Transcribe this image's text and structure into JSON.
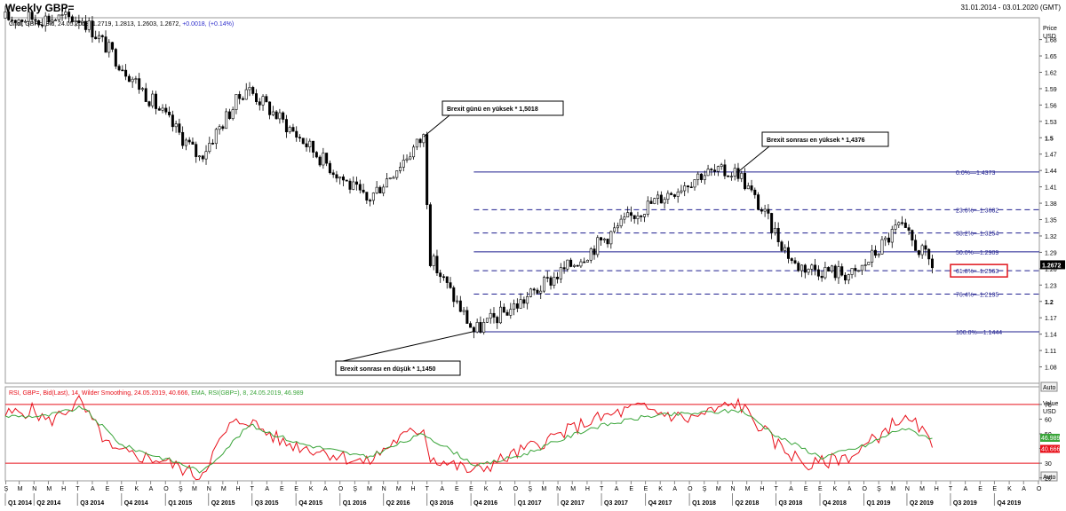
{
  "window": {
    "title": "Weekly GBP=",
    "date_range": "31.01.2014 - 03.01.2020 (GMT)"
  },
  "price_panel": {
    "header_prefix": "Cndl, GBP=, Bid, 24.05.2019, 1.2719, 1.2813, 1.2603, 1.2672, ",
    "header_change": "+0.0018, (+0.14%)",
    "axis_title": "Price",
    "axis_unit": "USD",
    "last_price": "1.2672",
    "auto_label": "Auto"
  },
  "rsi_panel": {
    "header_rsi": "RSI, GBP=, Bid(Last), 14, Wilder Smoothing, 24.05.2019, 40.666, ",
    "header_ema": "EMA, RSI(GBP=), 8, 24.05.2019, 46.989",
    "axis_title": "Value",
    "axis_unit": "USD",
    "ema_last": "46.989",
    "rsi_last": "40.666",
    "auto_label": "Auto"
  },
  "annotations": {
    "brexit_day_high": "Brexit günü en yüksek * 1,5018",
    "post_brexit_high": "Brexit sonrası en yüksek * 1,4376",
    "post_brexit_low": "Brexit sonrası en düşük * 1,1450"
  },
  "colors": {
    "bull_candle": "#ffffff",
    "bear_candle": "#000000",
    "fib_line": "#1f1f8f",
    "rsi_line": "#e8101a",
    "ema_line": "#3aa53a",
    "rsi_band": "#e8101a",
    "highlight_box": "#e0141c"
  },
  "chart_data": [
    {
      "type": "candlestick",
      "title": "Weekly GBP=",
      "ylabel": "Price USD",
      "ylim": [
        1.05,
        1.72
      ],
      "yticks": [
        {
          "v": 1.68,
          "label": "1.68"
        },
        {
          "v": 1.65,
          "label": "1.65"
        },
        {
          "v": 1.62,
          "label": "1.62"
        },
        {
          "v": 1.59,
          "label": "1.59"
        },
        {
          "v": 1.56,
          "label": "1.56"
        },
        {
          "v": 1.53,
          "label": "1.53"
        },
        {
          "v": 1.5,
          "label": "1.5",
          "bold": true
        },
        {
          "v": 1.47,
          "label": "1.47"
        },
        {
          "v": 1.44,
          "label": "1.44"
        },
        {
          "v": 1.41,
          "label": "1.41"
        },
        {
          "v": 1.38,
          "label": "1.38"
        },
        {
          "v": 1.35,
          "label": "1.35"
        },
        {
          "v": 1.32,
          "label": "1.32"
        },
        {
          "v": 1.29,
          "label": "1.29"
        },
        {
          "v": 1.26,
          "label": "1.26"
        },
        {
          "v": 1.23,
          "label": "1.23"
        },
        {
          "v": 1.2,
          "label": "1.2",
          "bold": true
        },
        {
          "v": 1.17,
          "label": "1.17"
        },
        {
          "v": 1.14,
          "label": "1.14"
        },
        {
          "v": 1.11,
          "label": "1.11"
        },
        {
          "v": 1.08,
          "label": "1.08"
        }
      ],
      "x_period": [
        "2014-01-31",
        "2020-01-03"
      ],
      "last_candle": {
        "date": "24.05.2019",
        "open": 1.2719,
        "high": 1.2813,
        "low": 1.2603,
        "close": 1.2672
      },
      "fibonacci": {
        "x_from": "2016-10-07",
        "x_to": "2020-01-03",
        "levels": [
          {
            "pct": "0.0%",
            "value": 1.4373,
            "solid": true
          },
          {
            "pct": "23.6%",
            "value": 1.3682,
            "solid": false
          },
          {
            "pct": "38.2%",
            "value": 1.3254,
            "solid": false
          },
          {
            "pct": "50.0%",
            "value": 1.2909,
            "solid": true
          },
          {
            "pct": "61.8%",
            "value": 1.2563,
            "solid": false,
            "highlight": true
          },
          {
            "pct": "76.4%",
            "value": 1.2135,
            "solid": false
          },
          {
            "pct": "100.0%",
            "value": 1.1444,
            "solid": true
          }
        ]
      },
      "anchor_points": [
        {
          "date": "2014-07-11",
          "price": 1.7192
        },
        {
          "date": "2015-03-13",
          "price": 1.4634
        },
        {
          "date": "2015-06-19",
          "price": 1.593
        },
        {
          "date": "2016-02-26",
          "price": 1.3836
        },
        {
          "date": "2016-06-24",
          "price": 1.5018
        },
        {
          "date": "2016-07-08",
          "price": 1.2798
        },
        {
          "date": "2016-10-07",
          "price": 1.145
        },
        {
          "date": "2017-01-13",
          "price": 1.1987
        },
        {
          "date": "2017-06-02",
          "price": 1.29
        },
        {
          "date": "2017-09-15",
          "price": 1.365
        },
        {
          "date": "2018-01-26",
          "price": 1.4345
        },
        {
          "date": "2018-04-13",
          "price": 1.4376
        },
        {
          "date": "2018-08-10",
          "price": 1.2665
        },
        {
          "date": "2018-12-14",
          "price": 1.248
        },
        {
          "date": "2019-03-15",
          "price": 1.338
        },
        {
          "date": "2019-05-24",
          "price": 1.2672
        }
      ]
    },
    {
      "type": "line",
      "title": "RSI, GBP=, Bid(Last), 14, Wilder Smoothing",
      "ylabel": "Value USD",
      "ylim": [
        18,
        82
      ],
      "bands": [
        30,
        70
      ],
      "yticks": [
        {
          "v": 70,
          "label": "70"
        },
        {
          "v": 60,
          "label": "60"
        },
        {
          "v": 50,
          "label": "50"
        },
        {
          "v": 40,
          "label": "40"
        },
        {
          "v": 30,
          "label": "30"
        },
        {
          "v": 20,
          "label": "20"
        }
      ],
      "series": [
        {
          "name": "RSI",
          "last": 40.666,
          "points": [
            {
              "date": "2014-01-31",
              "v": 63
            },
            {
              "date": "2014-03-28",
              "v": 66
            },
            {
              "date": "2014-05-02",
              "v": 58
            },
            {
              "date": "2014-07-04",
              "v": 72
            },
            {
              "date": "2014-09-12",
              "v": 38
            },
            {
              "date": "2014-12-26",
              "v": 32
            },
            {
              "date": "2015-03-13",
              "v": 21
            },
            {
              "date": "2015-05-15",
              "v": 55
            },
            {
              "date": "2015-06-19",
              "v": 60
            },
            {
              "date": "2015-09-04",
              "v": 44
            },
            {
              "date": "2015-11-27",
              "v": 38
            },
            {
              "date": "2016-02-26",
              "v": 30
            },
            {
              "date": "2016-04-29",
              "v": 46
            },
            {
              "date": "2016-06-24",
              "v": 54
            },
            {
              "date": "2016-07-08",
              "v": 34
            },
            {
              "date": "2016-10-07",
              "v": 24
            },
            {
              "date": "2017-01-13",
              "v": 38
            },
            {
              "date": "2017-06-02",
              "v": 58
            },
            {
              "date": "2017-09-15",
              "v": 68
            },
            {
              "date": "2017-12-29",
              "v": 60
            },
            {
              "date": "2018-04-13",
              "v": 71
            },
            {
              "date": "2018-06-29",
              "v": 44
            },
            {
              "date": "2018-09-07",
              "v": 28
            },
            {
              "date": "2018-12-14",
              "v": 36
            },
            {
              "date": "2019-03-15",
              "v": 60
            },
            {
              "date": "2019-04-26",
              "v": 55
            },
            {
              "date": "2019-05-24",
              "v": 40.666
            }
          ]
        },
        {
          "name": "EMA",
          "last": 46.989,
          "points": [
            {
              "date": "2014-01-31",
              "v": 62
            },
            {
              "date": "2014-04-25",
              "v": 62
            },
            {
              "date": "2014-07-11",
              "v": 68
            },
            {
              "date": "2014-10-03",
              "v": 42
            },
            {
              "date": "2015-01-30",
              "v": 30
            },
            {
              "date": "2015-03-20",
              "v": 24
            },
            {
              "date": "2015-06-26",
              "v": 56
            },
            {
              "date": "2015-10-02",
              "v": 44
            },
            {
              "date": "2016-02-26",
              "v": 34
            },
            {
              "date": "2016-06-24",
              "v": 50
            },
            {
              "date": "2016-10-14",
              "v": 28
            },
            {
              "date": "2017-01-20",
              "v": 36
            },
            {
              "date": "2017-06-09",
              "v": 54
            },
            {
              "date": "2017-10-06",
              "v": 62
            },
            {
              "date": "2018-04-20",
              "v": 66
            },
            {
              "date": "2018-07-06",
              "v": 48
            },
            {
              "date": "2018-10-05",
              "v": 34
            },
            {
              "date": "2019-01-04",
              "v": 42
            },
            {
              "date": "2019-03-22",
              "v": 54
            },
            {
              "date": "2019-05-24",
              "v": 46.989
            }
          ]
        }
      ]
    }
  ],
  "x_axis": {
    "months": [
      "Ş",
      "M",
      "N",
      "M",
      "H",
      "T",
      "A",
      "E",
      "E",
      "K",
      "A",
      "O",
      "Ş",
      "M",
      "N",
      "M",
      "H",
      "T",
      "A",
      "E",
      "E",
      "K",
      "A",
      "O",
      "Ş",
      "M",
      "N",
      "M",
      "H",
      "T",
      "A",
      "E",
      "E",
      "K",
      "A",
      "O",
      "Ş",
      "M",
      "N",
      "M",
      "H",
      "T",
      "A",
      "E",
      "E",
      "K",
      "A",
      "O",
      "Ş",
      "M",
      "N",
      "M",
      "H",
      "T",
      "A",
      "E",
      "E",
      "K",
      "A",
      "O",
      "Ş",
      "M",
      "N",
      "M",
      "H",
      "T",
      "A",
      "E",
      "E",
      "K",
      "A",
      "O"
    ],
    "quarters": [
      "Q1 2014",
      "Q2 2014",
      "Q3 2014",
      "Q4 2014",
      "Q1 2015",
      "Q2 2015",
      "Q3 2015",
      "Q4 2015",
      "Q1 2016",
      "Q2 2016",
      "Q3 2016",
      "Q4 2016",
      "Q1 2017",
      "Q2 2017",
      "Q3 2017",
      "Q4 2017",
      "Q1 2018",
      "Q2 2018",
      "Q3 2018",
      "Q4 2018",
      "Q1 2019",
      "Q2 2019",
      "Q3 2019",
      "Q4 2019"
    ]
  }
}
